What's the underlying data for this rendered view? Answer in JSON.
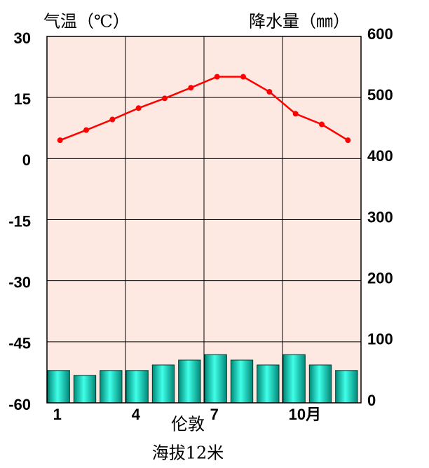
{
  "chart_data": {
    "type": "combo",
    "y_label": "气温（℃）",
    "y2_label": "降水量（㎜）",
    "caption": "伦敦",
    "subcaption": "海拔12米",
    "categories": [
      "1",
      null,
      null,
      "4",
      null,
      null,
      "7",
      null,
      null,
      "10月",
      null,
      null
    ],
    "ylim": [
      -60,
      30
    ],
    "yticks": [
      -60,
      -45,
      -30,
      -15,
      0,
      15,
      30
    ],
    "y2lim": [
      0,
      600
    ],
    "y2ticks": [
      0,
      100,
      200,
      300,
      400,
      500,
      600
    ],
    "grid": true,
    "background": "#fde9e2",
    "series": [
      {
        "name": "降水量",
        "type": "bar",
        "axis": "y2",
        "color": "#00d8c0",
        "values": [
          53,
          45,
          53,
          53,
          62,
          70,
          79,
          70,
          62,
          79,
          62,
          53
        ]
      },
      {
        "name": "气温",
        "type": "line",
        "axis": "y",
        "color": "#ff0000",
        "values": [
          4.5,
          7,
          9.6,
          12.4,
          14.8,
          17.4,
          20.1,
          20.1,
          16.4,
          11,
          8.4,
          4.5
        ]
      }
    ]
  }
}
